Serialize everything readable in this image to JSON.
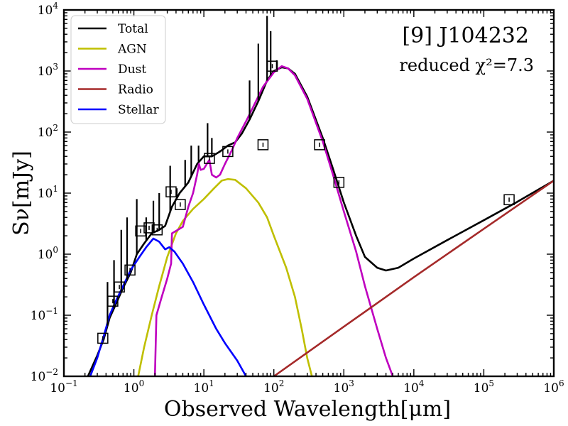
{
  "chart_data": {
    "type": "line",
    "title": "[9] J104232",
    "subtitle": "reduced χ²=7.3",
    "xlabel": "Observed Wavelength[μm]",
    "ylabel": "Sν[mJy]",
    "xscale": "log",
    "yscale": "log",
    "xlim": [
      0.1,
      1000000
    ],
    "ylim": [
      0.01,
      10000
    ],
    "x_ticks": [
      {
        "value": 0.1,
        "base": "10",
        "exp": "−1"
      },
      {
        "value": 1,
        "base": "10",
        "exp": "0"
      },
      {
        "value": 10,
        "base": "10",
        "exp": "1"
      },
      {
        "value": 100,
        "base": "10",
        "exp": "2"
      },
      {
        "value": 1000,
        "base": "10",
        "exp": "3"
      },
      {
        "value": 10000,
        "base": "10",
        "exp": "4"
      },
      {
        "value": 100000,
        "base": "10",
        "exp": "5"
      },
      {
        "value": 1000000,
        "base": "10",
        "exp": "6"
      }
    ],
    "y_ticks": [
      {
        "value": 0.01,
        "base": "10",
        "exp": "−2"
      },
      {
        "value": 0.1,
        "base": "10",
        "exp": "−1"
      },
      {
        "value": 1,
        "base": "10",
        "exp": "0"
      },
      {
        "value": 10,
        "base": "10",
        "exp": "1"
      },
      {
        "value": 100,
        "base": "10",
        "exp": "2"
      },
      {
        "value": 1000,
        "base": "10",
        "exp": "3"
      },
      {
        "value": 10000,
        "base": "10",
        "exp": "4"
      }
    ],
    "legend": {
      "position": "top-left",
      "entries": [
        {
          "label": "Total",
          "color": "#000000"
        },
        {
          "label": "AGN",
          "color": "#bfbf00"
        },
        {
          "label": "Dust",
          "color": "#bf00bf"
        },
        {
          "label": "Radio",
          "color": "#a52a2a"
        },
        {
          "label": "Stellar",
          "color": "#0000ff"
        }
      ]
    },
    "series": [
      {
        "name": "Total",
        "color": "#000000",
        "points": [
          [
            0.22,
            0.01
          ],
          [
            0.3,
            0.022
          ],
          [
            0.37,
            0.04
          ],
          [
            0.45,
            0.09
          ],
          [
            0.55,
            0.15
          ],
          [
            0.7,
            0.28
          ],
          [
            0.9,
            0.5
          ],
          [
            1.1,
            1.0
          ],
          [
            1.4,
            1.5
          ],
          [
            1.8,
            2.2
          ],
          [
            2.3,
            2.5
          ],
          [
            2.8,
            2.9
          ],
          [
            3.5,
            6.0
          ],
          [
            4.5,
            10
          ],
          [
            6,
            15
          ],
          [
            8,
            30
          ],
          [
            10,
            40
          ],
          [
            13,
            40
          ],
          [
            17,
            48
          ],
          [
            22,
            60
          ],
          [
            28,
            68
          ],
          [
            35,
            95
          ],
          [
            45,
            160
          ],
          [
            60,
            320
          ],
          [
            80,
            700
          ],
          [
            100,
            1000
          ],
          [
            130,
            1150
          ],
          [
            160,
            1100
          ],
          [
            200,
            900
          ],
          [
            300,
            380
          ],
          [
            500,
            80
          ],
          [
            700,
            25
          ],
          [
            1000,
            7
          ],
          [
            1500,
            2
          ],
          [
            2000,
            0.9
          ],
          [
            3000,
            0.6
          ],
          [
            4000,
            0.54
          ],
          [
            6000,
            0.6
          ],
          [
            10000,
            0.85
          ],
          [
            30000,
            1.7
          ],
          [
            100000,
            3.6
          ],
          [
            300000,
            7.2
          ],
          [
            1000000,
            16
          ]
        ]
      },
      {
        "name": "AGN",
        "color": "#bfbf00",
        "points": [
          [
            1.15,
            0.01
          ],
          [
            1.4,
            0.03
          ],
          [
            1.8,
            0.1
          ],
          [
            2.3,
            0.3
          ],
          [
            3,
            0.9
          ],
          [
            4,
            2.2
          ],
          [
            5,
            3.5
          ],
          [
            7,
            5.5
          ],
          [
            10,
            8
          ],
          [
            14,
            12
          ],
          [
            18,
            16
          ],
          [
            22,
            17
          ],
          [
            28,
            16.5
          ],
          [
            40,
            12
          ],
          [
            60,
            7
          ],
          [
            80,
            4
          ],
          [
            100,
            2
          ],
          [
            150,
            0.6
          ],
          [
            200,
            0.2
          ],
          [
            250,
            0.06
          ],
          [
            300,
            0.02
          ],
          [
            350,
            0.01
          ]
        ]
      },
      {
        "name": "Dust",
        "color": "#bf00bf",
        "points": [
          [
            2,
            0.01
          ],
          [
            2.1,
            0.1
          ],
          [
            2.5,
            0.2
          ],
          [
            3,
            0.4
          ],
          [
            3.4,
            0.7
          ],
          [
            3.5,
            2.2
          ],
          [
            4,
            2.4
          ],
          [
            5,
            2.8
          ],
          [
            6,
            6
          ],
          [
            7,
            10
          ],
          [
            8,
            20
          ],
          [
            8.5,
            30
          ],
          [
            9,
            24
          ],
          [
            10,
            25
          ],
          [
            11,
            30
          ],
          [
            12,
            35
          ],
          [
            13,
            20
          ],
          [
            15,
            18
          ],
          [
            17,
            20
          ],
          [
            20,
            30
          ],
          [
            25,
            50
          ],
          [
            30,
            80
          ],
          [
            40,
            150
          ],
          [
            50,
            250
          ],
          [
            70,
            550
          ],
          [
            100,
            950
          ],
          [
            130,
            1200
          ],
          [
            160,
            1100
          ],
          [
            200,
            850
          ],
          [
            300,
            350
          ],
          [
            500,
            70
          ],
          [
            700,
            20
          ],
          [
            1000,
            5
          ],
          [
            1500,
            1.1
          ],
          [
            2000,
            0.3
          ],
          [
            3000,
            0.06
          ],
          [
            4000,
            0.02
          ],
          [
            5000,
            0.01
          ]
        ]
      },
      {
        "name": "Radio",
        "color": "#a52a2a",
        "points": [
          [
            100,
            0.01
          ],
          [
            1000,
            0.065
          ],
          [
            10000,
            0.42
          ],
          [
            100000,
            2.6
          ],
          [
            1000000,
            16
          ]
        ]
      },
      {
        "name": "Stellar",
        "color": "#0000ff",
        "points": [
          [
            0.2,
            0.006
          ],
          [
            0.3,
            0.02
          ],
          [
            0.37,
            0.045
          ],
          [
            0.45,
            0.1
          ],
          [
            0.55,
            0.17
          ],
          [
            0.7,
            0.3
          ],
          [
            0.9,
            0.55
          ],
          [
            1.2,
            0.9
          ],
          [
            1.5,
            1.3
          ],
          [
            1.9,
            1.8
          ],
          [
            2.3,
            1.6
          ],
          [
            2.8,
            1.2
          ],
          [
            3.2,
            1.3
          ],
          [
            3.8,
            1.1
          ],
          [
            5,
            0.7
          ],
          [
            7,
            0.35
          ],
          [
            10,
            0.15
          ],
          [
            15,
            0.06
          ],
          [
            20,
            0.035
          ],
          [
            30,
            0.018
          ],
          [
            40,
            0.01
          ]
        ]
      }
    ],
    "total_lines": [
      [
        0.42,
        0.35
      ],
      [
        0.52,
        0.8
      ],
      [
        0.66,
        2.5
      ],
      [
        0.8,
        4.0
      ],
      [
        1.1,
        8.0
      ],
      [
        1.5,
        4.0
      ],
      [
        1.9,
        7.5
      ],
      [
        2.3,
        10
      ],
      [
        3.3,
        28
      ],
      [
        4.1,
        12
      ],
      [
        5.4,
        35
      ],
      [
        6.6,
        60
      ],
      [
        8.4,
        60
      ],
      [
        11.3,
        140
      ],
      [
        13,
        80
      ],
      [
        17,
        50
      ],
      [
        45,
        700
      ],
      [
        60,
        2800
      ],
      [
        80,
        8000
      ],
      [
        90,
        4500
      ],
      [
        110,
        1500
      ]
    ],
    "observed_points": [
      {
        "x": 0.36,
        "y": 0.042
      },
      {
        "x": 0.5,
        "y": 0.17
      },
      {
        "x": 0.62,
        "y": 0.29
      },
      {
        "x": 0.88,
        "y": 0.55
      },
      {
        "x": 1.25,
        "y": 2.4
      },
      {
        "x": 1.65,
        "y": 2.7
      },
      {
        "x": 2.15,
        "y": 2.5
      },
      {
        "x": 3.4,
        "y": 10.5
      },
      {
        "x": 4.6,
        "y": 6.5
      },
      {
        "x": 12,
        "y": 37
      },
      {
        "x": 22,
        "y": 48
      },
      {
        "x": 70,
        "y": 62
      },
      {
        "x": 95,
        "y": 1200
      },
      {
        "x": 450,
        "y": 62
      },
      {
        "x": 850,
        "y": 15
      },
      {
        "x": 230000,
        "y": 7.8
      }
    ]
  }
}
